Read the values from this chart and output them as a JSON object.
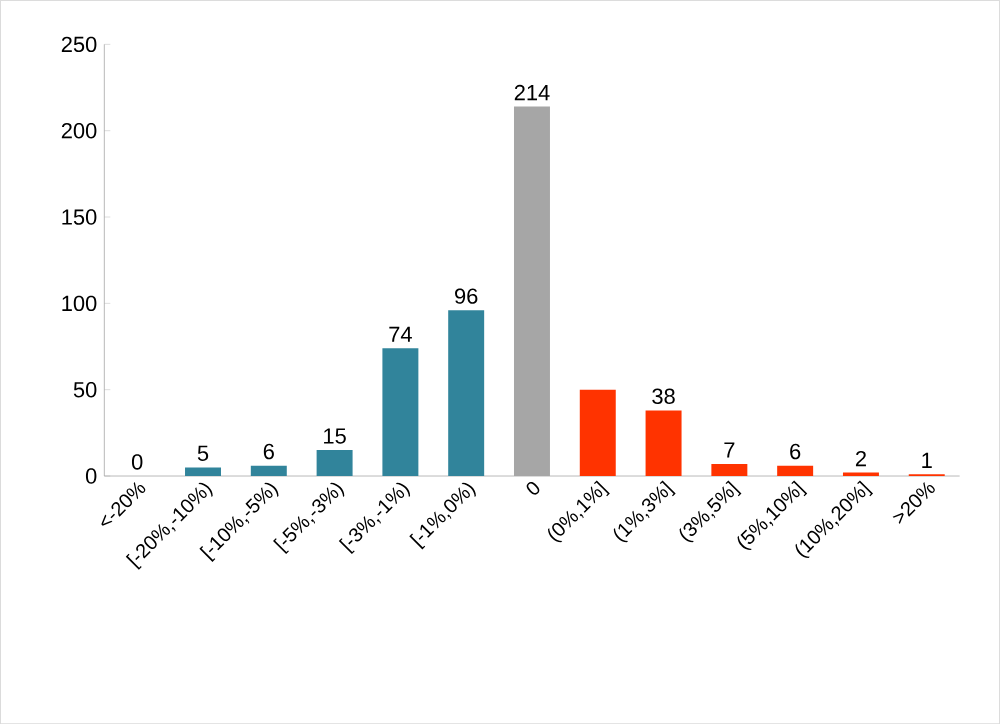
{
  "chart_data": {
    "type": "bar",
    "categories": [
      "<-20%",
      "[-20%,-10%)",
      "[-10%,-5%)",
      "[-5%,-3%)",
      "[-3%,-1%)",
      "[-1%,0%)",
      "0",
      "(0%,1%]",
      "(1%,3%]",
      "(3%,5%]",
      "(5%,10%]",
      "(10%,20%]",
      ">20%"
    ],
    "values": [
      0,
      5,
      6,
      15,
      74,
      96,
      214,
      50,
      38,
      7,
      6,
      2,
      1
    ],
    "value_labels": [
      "0",
      "5",
      "6",
      "15",
      "74",
      "96",
      "214",
      null,
      "38",
      "7",
      "6",
      "2",
      "1"
    ],
    "colors": [
      "#31849b",
      "#31849b",
      "#31849b",
      "#31849b",
      "#31849b",
      "#31849b",
      "#a6a6a6",
      "#ff3300",
      "#ff3300",
      "#ff3300",
      "#ff3300",
      "#ff3300",
      "#ff3300"
    ],
    "ylim": [
      0,
      250
    ],
    "yticks": [
      0,
      50,
      100,
      150,
      200,
      250
    ]
  }
}
